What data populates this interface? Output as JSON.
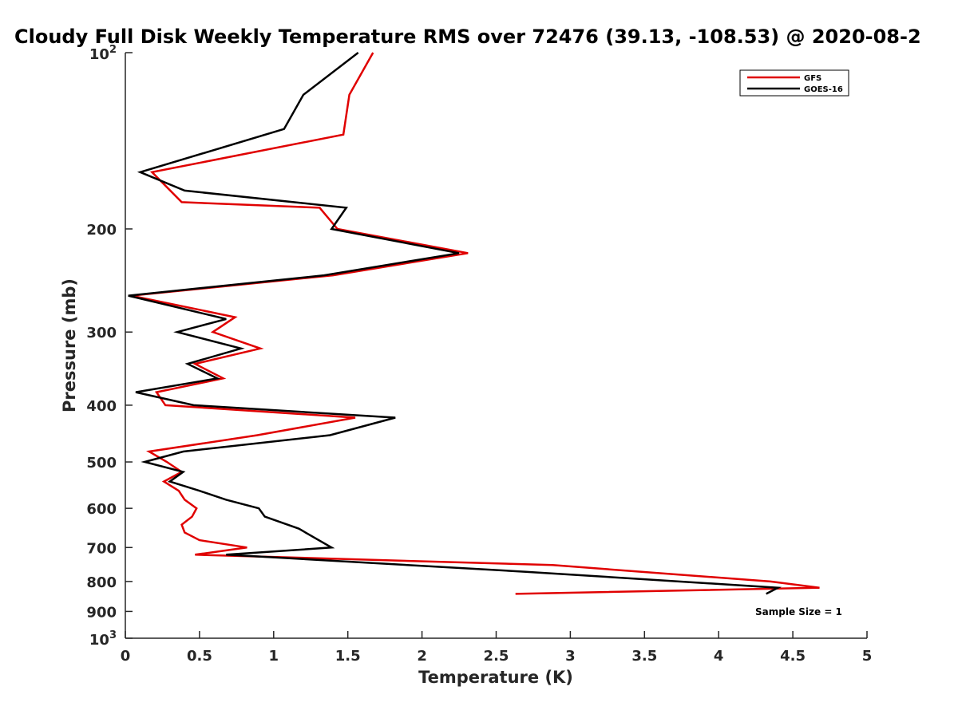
{
  "chart_data": {
    "type": "line",
    "title": "Cloudy Full Disk Weekly Temperature RMS over 72476 (39.13, -108.53) @ 2020-08-2",
    "xlabel": "Temperature (K)",
    "ylabel": "Pressure (mb)",
    "xlim": [
      0,
      5
    ],
    "ylim": [
      100,
      1000
    ],
    "y_scale": "log",
    "y_reversed": true,
    "x_ticks": [
      "0",
      "0.5",
      "1",
      "1.5",
      "2",
      "2.5",
      "3",
      "3.5",
      "4",
      "4.5",
      "5"
    ],
    "y_ticks": [
      {
        "value": 100,
        "base": "10",
        "exp": "2"
      },
      {
        "value": 200,
        "label": "200"
      },
      {
        "value": 300,
        "label": "300"
      },
      {
        "value": 400,
        "label": "400"
      },
      {
        "value": 500,
        "label": "500"
      },
      {
        "value": 600,
        "label": "600"
      },
      {
        "value": 700,
        "label": "700"
      },
      {
        "value": 800,
        "label": "800"
      },
      {
        "value": 900,
        "label": "900"
      },
      {
        "value": 1000,
        "base": "10",
        "exp": "3"
      }
    ],
    "grid": false,
    "legend_position": "top-right",
    "annotation": "Sample Size = 1",
    "series": [
      {
        "name": "GFS",
        "color": "#e00000",
        "points": [
          [
            1.67,
            100
          ],
          [
            1.51,
            118
          ],
          [
            1.47,
            138
          ],
          [
            0.18,
            160
          ],
          [
            0.38,
            180
          ],
          [
            1.31,
            184
          ],
          [
            1.43,
            200
          ],
          [
            2.31,
            220
          ],
          [
            1.4,
            240
          ],
          [
            0.04,
            260
          ],
          [
            0.74,
            283
          ],
          [
            0.59,
            300
          ],
          [
            0.91,
            320
          ],
          [
            0.47,
            340
          ],
          [
            0.66,
            360
          ],
          [
            0.21,
            380
          ],
          [
            0.27,
            400
          ],
          [
            1.55,
            420
          ],
          [
            0.89,
            450
          ],
          [
            0.16,
            480
          ],
          [
            0.28,
            500
          ],
          [
            0.38,
            520
          ],
          [
            0.26,
            540
          ],
          [
            0.36,
            560
          ],
          [
            0.4,
            580
          ],
          [
            0.48,
            600
          ],
          [
            0.45,
            620
          ],
          [
            0.38,
            640
          ],
          [
            0.4,
            660
          ],
          [
            0.5,
            680
          ],
          [
            0.82,
            700
          ],
          [
            0.47,
            720
          ],
          [
            2.88,
            750
          ],
          [
            4.35,
            800
          ],
          [
            4.68,
            820
          ],
          [
            2.63,
            840
          ]
        ]
      },
      {
        "name": "GOES-16",
        "color": "#000000",
        "points": [
          [
            1.57,
            100
          ],
          [
            1.2,
            118
          ],
          [
            1.07,
            135
          ],
          [
            0.1,
            160
          ],
          [
            0.4,
            172
          ],
          [
            1.49,
            184
          ],
          [
            1.39,
            200
          ],
          [
            2.25,
            220
          ],
          [
            1.34,
            240
          ],
          [
            0.02,
            260
          ],
          [
            0.68,
            285
          ],
          [
            0.35,
            300
          ],
          [
            0.78,
            320
          ],
          [
            0.42,
            340
          ],
          [
            0.62,
            360
          ],
          [
            0.07,
            380
          ],
          [
            0.46,
            400
          ],
          [
            1.82,
            420
          ],
          [
            1.38,
            450
          ],
          [
            0.39,
            480
          ],
          [
            0.13,
            500
          ],
          [
            0.39,
            520
          ],
          [
            0.3,
            540
          ],
          [
            0.5,
            560
          ],
          [
            0.68,
            580
          ],
          [
            0.9,
            600
          ],
          [
            0.94,
            620
          ],
          [
            1.17,
            650
          ],
          [
            1.39,
            700
          ],
          [
            0.68,
            720
          ],
          [
            2.7,
            770
          ],
          [
            4.4,
            820
          ],
          [
            4.32,
            840
          ]
        ]
      }
    ]
  }
}
